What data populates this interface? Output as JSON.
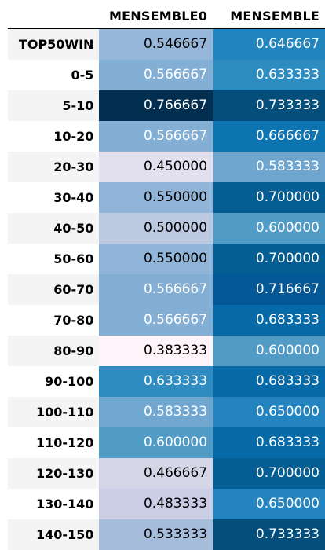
{
  "chart_data": {
    "type": "table",
    "columns": [
      "MENSEMBLE0",
      "MENSEMBLE"
    ],
    "rows": [
      {
        "label": "TOP50WIN",
        "values": [
          "0.546667",
          "0.646667"
        ]
      },
      {
        "label": "0-5",
        "values": [
          "0.566667",
          "0.633333"
        ]
      },
      {
        "label": "5-10",
        "values": [
          "0.766667",
          "0.733333"
        ]
      },
      {
        "label": "10-20",
        "values": [
          "0.566667",
          "0.666667"
        ]
      },
      {
        "label": "20-30",
        "values": [
          "0.450000",
          "0.583333"
        ]
      },
      {
        "label": "30-40",
        "values": [
          "0.550000",
          "0.700000"
        ]
      },
      {
        "label": "40-50",
        "values": [
          "0.500000",
          "0.600000"
        ]
      },
      {
        "label": "50-60",
        "values": [
          "0.550000",
          "0.700000"
        ]
      },
      {
        "label": "60-70",
        "values": [
          "0.566667",
          "0.716667"
        ]
      },
      {
        "label": "70-80",
        "values": [
          "0.566667",
          "0.683333"
        ]
      },
      {
        "label": "80-90",
        "values": [
          "0.383333",
          "0.600000"
        ]
      },
      {
        "label": "90-100",
        "values": [
          "0.633333",
          "0.683333"
        ]
      },
      {
        "label": "100-110",
        "values": [
          "0.583333",
          "0.650000"
        ]
      },
      {
        "label": "110-120",
        "values": [
          "0.600000",
          "0.683333"
        ]
      },
      {
        "label": "120-130",
        "values": [
          "0.466667",
          "0.700000"
        ]
      },
      {
        "label": "130-140",
        "values": [
          "0.483333",
          "0.650000"
        ]
      },
      {
        "label": "140-150",
        "values": [
          "0.533333",
          "0.733333"
        ]
      }
    ],
    "cell_colors": [
      [
        "#97b7da",
        "#2284bc"
      ],
      [
        "#83afd4",
        "#2d8cc0"
      ],
      [
        "#022f50",
        "#034e7b"
      ],
      [
        "#83afd4",
        "#0d74b2"
      ],
      [
        "#e2dfee",
        "#6ea6cf"
      ],
      [
        "#91b5d8",
        "#045d93"
      ],
      [
        "#bdc9e1",
        "#519bc7"
      ],
      [
        "#91b5d8",
        "#045d93"
      ],
      [
        "#83afd4",
        "#055896"
      ],
      [
        "#83afd4",
        "#066aa8"
      ],
      [
        "#fff4f9",
        "#519bc7"
      ],
      [
        "#2e8cc0",
        "#066aa8"
      ],
      [
        "#71a7cf",
        "#2384c0"
      ],
      [
        "#519bc7",
        "#066aa8"
      ],
      [
        "#d5d5e8",
        "#045d93"
      ],
      [
        "#cacde4",
        "#2384c0"
      ],
      [
        "#a5bddb",
        "#034e7b"
      ]
    ],
    "text_colors": [
      [
        "#000000",
        "#ffffff"
      ],
      [
        "#ffffff",
        "#ffffff"
      ],
      [
        "#ffffff",
        "#ffffff"
      ],
      [
        "#ffffff",
        "#ffffff"
      ],
      [
        "#000000",
        "#ffffff"
      ],
      [
        "#000000",
        "#ffffff"
      ],
      [
        "#000000",
        "#ffffff"
      ],
      [
        "#000000",
        "#ffffff"
      ],
      [
        "#ffffff",
        "#ffffff"
      ],
      [
        "#ffffff",
        "#ffffff"
      ],
      [
        "#000000",
        "#ffffff"
      ],
      [
        "#ffffff",
        "#ffffff"
      ],
      [
        "#ffffff",
        "#ffffff"
      ],
      [
        "#ffffff",
        "#ffffff"
      ],
      [
        "#000000",
        "#ffffff"
      ],
      [
        "#000000",
        "#ffffff"
      ],
      [
        "#000000",
        "#ffffff"
      ]
    ]
  }
}
